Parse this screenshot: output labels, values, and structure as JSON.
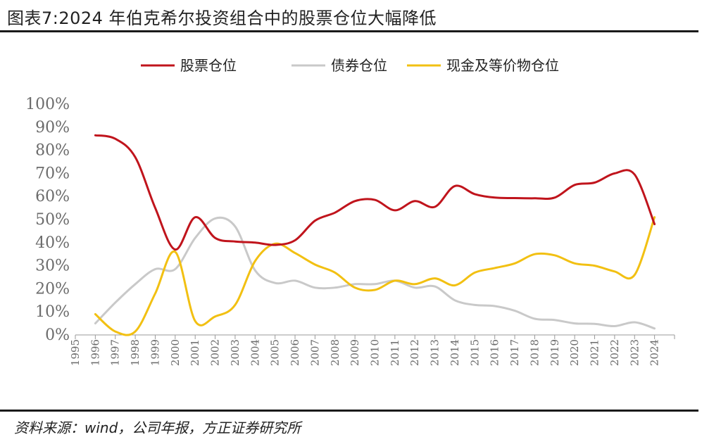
{
  "title": "图表7:2024 年伯克希尔投资组合中的股票仓位大幅降低",
  "source": "资料来源：wind，公司年报，方正证券研究所",
  "chart_data": {
    "type": "line",
    "title": "图表7:2024 年伯克希尔投资组合中的股票仓位大幅降低",
    "xlabel": "",
    "ylabel": "",
    "ylim": [
      0,
      100
    ],
    "yticks": [
      "0%",
      "10%",
      "20%",
      "30%",
      "40%",
      "50%",
      "60%",
      "70%",
      "80%",
      "90%",
      "100%"
    ],
    "x_ticks": [
      "1995",
      "1996",
      "1997",
      "1998",
      "1999",
      "2000",
      "2001",
      "2002",
      "2003",
      "2004",
      "2005",
      "2006",
      "2007",
      "2008",
      "2009",
      "2010",
      "2011",
      "2012",
      "2013",
      "2014",
      "2015",
      "2016",
      "2017",
      "2018",
      "2019",
      "2020",
      "2021",
      "2022",
      "2023",
      "2024"
    ],
    "grid": false,
    "legend_position": "top",
    "x": [
      1996,
      1997,
      1998,
      1999,
      2000,
      2001,
      2002,
      2003,
      2004,
      2005,
      2006,
      2007,
      2008,
      2009,
      2010,
      2011,
      2012,
      2013,
      2014,
      2015,
      2016,
      2017,
      2018,
      2019,
      2020,
      2021,
      2022,
      2023,
      2024
    ],
    "series": [
      {
        "name": "股票仓位",
        "color": "#c0141c",
        "values": [
          86.5,
          85,
          77,
          55,
          37,
          51,
          42,
          40.5,
          40,
          39,
          41,
          49.5,
          53,
          58,
          58.5,
          54,
          58,
          55.5,
          64.5,
          61,
          59.5,
          59.3,
          59.2,
          59.5,
          65,
          66,
          70,
          69.5,
          48
        ]
      },
      {
        "name": "债券仓位",
        "color": "#c9c9c9",
        "values": [
          5,
          14,
          22,
          28.5,
          28.5,
          42,
          50.5,
          47,
          28,
          22.5,
          23.5,
          20.5,
          20.5,
          22,
          22,
          23.5,
          20.5,
          21,
          15,
          13,
          12.5,
          10.5,
          7,
          6.5,
          5,
          4.8,
          3.8,
          5.5,
          2.8
        ]
      },
      {
        "name": "现金及等价物仓位",
        "color": "#f2c012",
        "values": [
          9,
          1.5,
          1.5,
          18,
          36,
          6,
          8,
          13,
          32,
          39.5,
          35.5,
          30.5,
          27,
          20.5,
          19.5,
          23.5,
          22,
          24.5,
          21.5,
          27,
          29,
          31,
          35,
          34.5,
          31,
          30,
          27.5,
          26,
          51
        ]
      }
    ]
  }
}
